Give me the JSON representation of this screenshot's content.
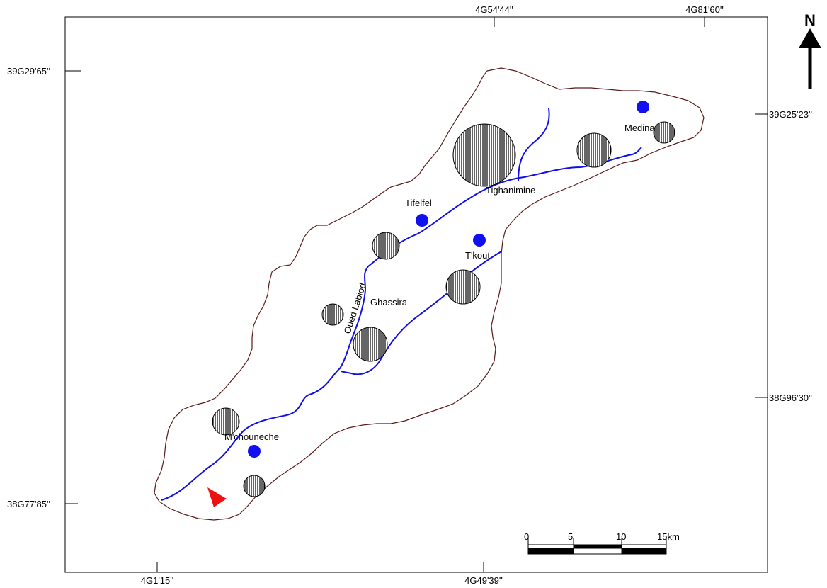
{
  "map": {
    "coords": {
      "top_1": "4G54'44''",
      "top_2": "4G81'60''",
      "bottom_1": "4G1'15''",
      "bottom_2": "4G49'39''",
      "left_1": "39G29'65''",
      "left_2": "38G77'85''",
      "right_1": "39G25'23''",
      "right_2": "38G96'30''"
    },
    "north_label": "N",
    "places": {
      "medina": "Medina",
      "tighanimine": "Tighanimine",
      "tifelfel": "Tifelfel",
      "tkout": "T'kout",
      "ghassira": "Ghassira",
      "mchouneche": "M'chouneche",
      "river": "Oued Labiod"
    },
    "scale": {
      "t0": "0",
      "t5": "5",
      "t10": "10",
      "t15": "15km"
    },
    "colors": {
      "river": "#1010e6",
      "station": "#1010f0",
      "outlet": "#ee1111",
      "boundary": "#5a1a1a"
    }
  }
}
